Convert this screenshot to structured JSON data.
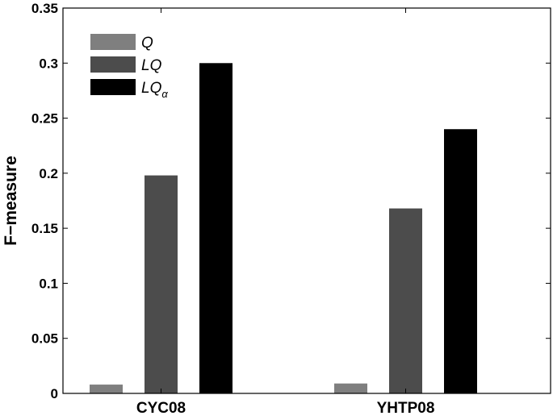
{
  "chart_data": {
    "type": "bar",
    "categories": [
      "CYC08",
      "YHTP08"
    ],
    "series": [
      {
        "name": "Q",
        "sub": "",
        "color": "#7f7f7f",
        "values": [
          0.008,
          0.009
        ]
      },
      {
        "name": "LQ",
        "sub": "",
        "color": "#4c4c4c",
        "values": [
          0.198,
          0.168
        ]
      },
      {
        "name": "LQ",
        "sub": "α",
        "color": "#000000",
        "values": [
          0.3,
          0.24
        ]
      }
    ],
    "title": "",
    "xlabel": "",
    "ylabel": "F−measure",
    "ylim": [
      0,
      0.35
    ],
    "yticks": [
      "0",
      "0.05",
      "0.1",
      "0.15",
      "0.2",
      "0.25",
      "0.3",
      "0.35"
    ],
    "grid": false,
    "legend_position": "top-left"
  }
}
